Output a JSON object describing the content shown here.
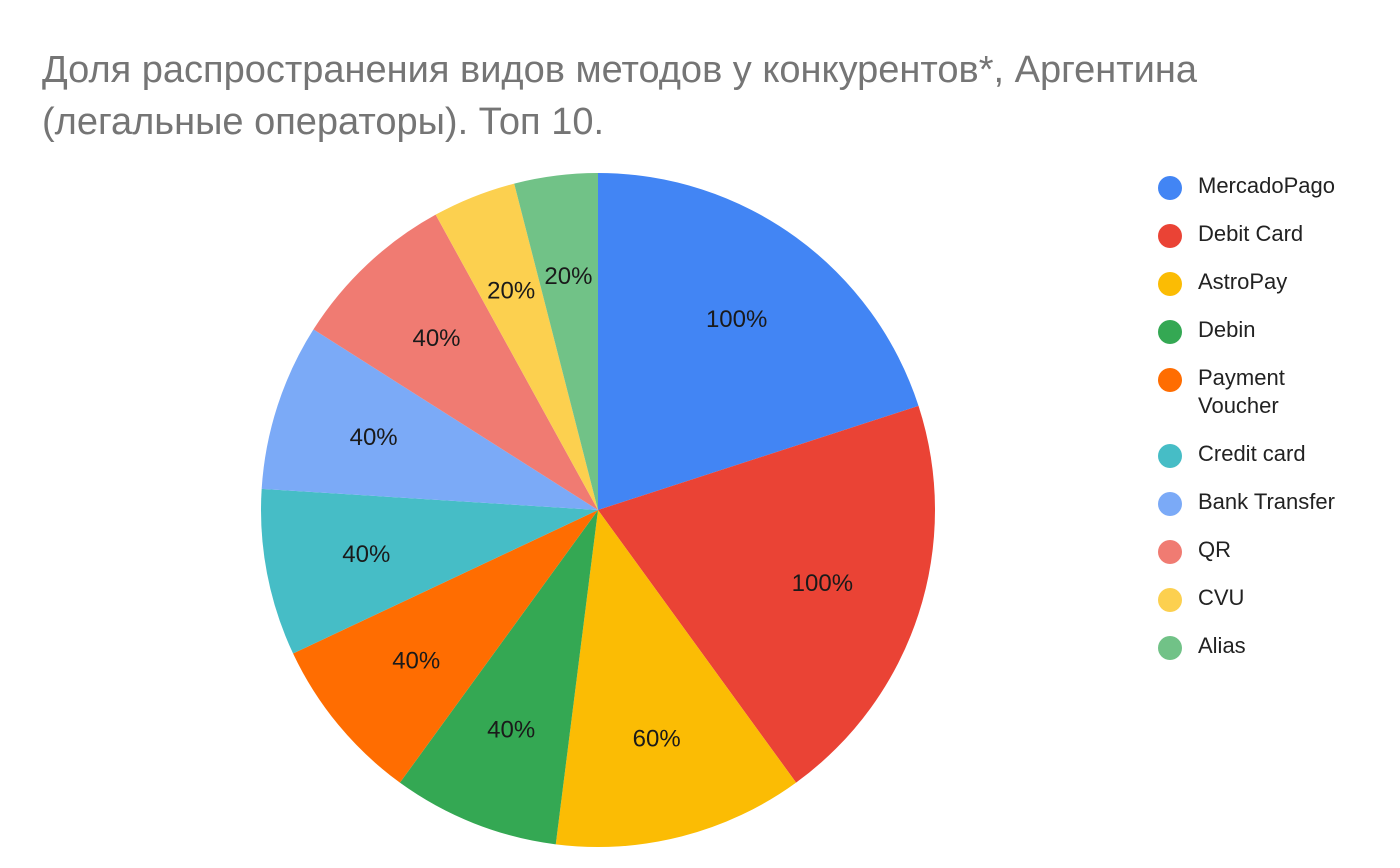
{
  "title": "Доля распространения видов методов у конкурентов*, Аргентина (легальные операторы). Топ 10.",
  "chart_data": {
    "type": "pie",
    "title": "Доля распространения видов методов у конкурентов*, Аргентина (легальные операторы). Топ 10.",
    "categories": [
      "MercadoPago",
      "Debit Card",
      "AstroPay",
      "Debin",
      "Payment Voucher",
      "Credit card",
      "Bank Transfer",
      "QR",
      "CVU",
      "Alias"
    ],
    "values": [
      100,
      100,
      60,
      40,
      40,
      40,
      40,
      40,
      20,
      20
    ],
    "labels": [
      "100%",
      "100%",
      "60%",
      "40%",
      "40%",
      "40%",
      "40%",
      "40%",
      "20%",
      "20%"
    ],
    "colors": [
      "#4285F4",
      "#EA4335",
      "#FBBC04",
      "#34A853",
      "#FF6D01",
      "#46BDC6",
      "#7BAAF7",
      "#F07B72",
      "#FCD04F",
      "#71C287"
    ],
    "legend_position": "right",
    "start_angle": "12 o'clock, clockwise"
  },
  "legend": {
    "items": [
      {
        "label": "MercadoPago",
        "color": "#4285F4"
      },
      {
        "label": "Debit Card",
        "color": "#EA4335"
      },
      {
        "label": "AstroPay",
        "color": "#FBBC04"
      },
      {
        "label": "Debin",
        "color": "#34A853"
      },
      {
        "label": "Payment Voucher",
        "color": "#FF6D01"
      },
      {
        "label": "Credit card",
        "color": "#46BDC6"
      },
      {
        "label": "Bank Transfer",
        "color": "#7BAAF7"
      },
      {
        "label": "QR",
        "color": "#F07B72"
      },
      {
        "label": "CVU",
        "color": "#FCD04F"
      },
      {
        "label": "Alias",
        "color": "#71C287"
      }
    ]
  }
}
